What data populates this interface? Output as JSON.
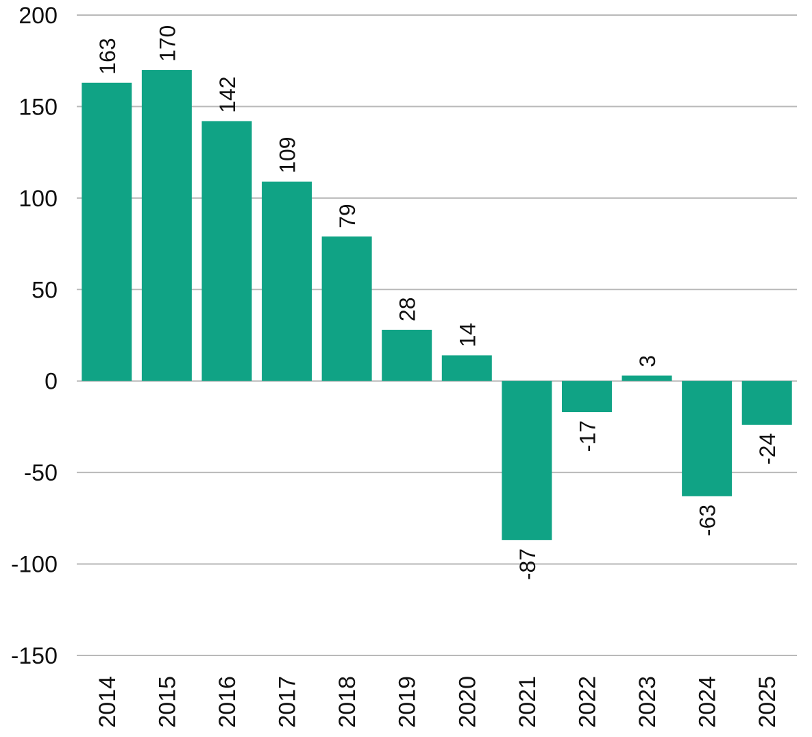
{
  "chart_data": {
    "type": "bar",
    "title": "",
    "xlabel": "",
    "ylabel": "",
    "categories": [
      "2014",
      "2015",
      "2016",
      "2017",
      "2018",
      "2019",
      "2020",
      "2021",
      "2022",
      "2023",
      "2024",
      "2025"
    ],
    "values": [
      163,
      170,
      142,
      109,
      79,
      28,
      14,
      -87,
      -17,
      3,
      -63,
      -24
    ],
    "ylim": [
      -150,
      200
    ],
    "yticks": [
      200,
      150,
      100,
      50,
      0,
      -50,
      -100,
      -150
    ],
    "grid": true,
    "legend": "none",
    "bar_color": "#10a385",
    "data_labels_rotated": true,
    "x_labels_rotated": true
  }
}
